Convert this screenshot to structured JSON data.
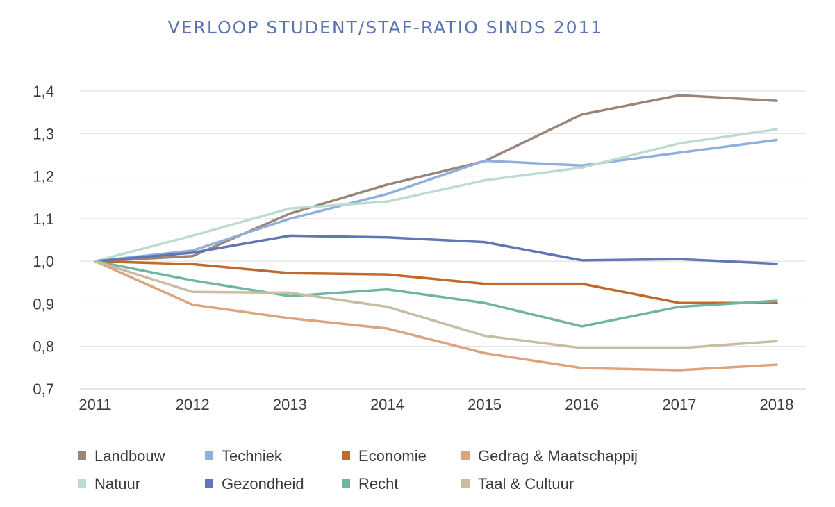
{
  "chart_data": {
    "type": "line",
    "title": "VERLOOP STUDENT/STAF-RATIO SINDS 2011",
    "xlabel": "",
    "ylabel": "",
    "categories": [
      "2011",
      "2012",
      "2013",
      "2014",
      "2015",
      "2016",
      "2017",
      "2018"
    ],
    "ylim": [
      0.7,
      1.4
    ],
    "yticks": [
      0.7,
      0.8,
      0.9,
      1.0,
      1.1,
      1.2,
      1.3,
      1.4
    ],
    "ytick_labels": [
      "0,7",
      "0,8",
      "0,9",
      "1,0",
      "1,1",
      "1,2",
      "1,3",
      "1,4"
    ],
    "grid": true,
    "legend_position": "bottom",
    "series": [
      {
        "name": "Landbouw",
        "color": "#9b8478",
        "values": [
          1.0,
          1.012,
          1.112,
          1.18,
          1.235,
          1.345,
          1.39,
          1.377
        ]
      },
      {
        "name": "Techniek",
        "color": "#8fb0dc",
        "values": [
          1.0,
          1.025,
          1.1,
          1.158,
          1.236,
          1.225,
          1.255,
          1.285
        ]
      },
      {
        "name": "Economie",
        "color": "#c0692a",
        "values": [
          1.0,
          0.993,
          0.972,
          0.969,
          0.947,
          0.947,
          0.902,
          0.902
        ]
      },
      {
        "name": "Gedrag & Maatschappij",
        "color": "#dda27e",
        "values": [
          1.0,
          0.898,
          0.866,
          0.842,
          0.784,
          0.749,
          0.744,
          0.757
        ]
      },
      {
        "name": "Natuur",
        "color": "#bcdcd0",
        "values": [
          1.0,
          1.06,
          1.124,
          1.14,
          1.19,
          1.22,
          1.277,
          1.31
        ]
      },
      {
        "name": "Gezondheid",
        "color": "#5f78b5",
        "values": [
          1.0,
          1.02,
          1.06,
          1.056,
          1.045,
          1.002,
          1.005,
          0.994
        ]
      },
      {
        "name": "Recht",
        "color": "#6fb5a2",
        "values": [
          1.0,
          0.955,
          0.918,
          0.934,
          0.902,
          0.847,
          0.893,
          0.907
        ]
      },
      {
        "name": "Taal & Cultuur",
        "color": "#c7bda1",
        "values": [
          1.0,
          0.928,
          0.926,
          0.893,
          0.825,
          0.796,
          0.796,
          0.812
        ]
      }
    ]
  }
}
